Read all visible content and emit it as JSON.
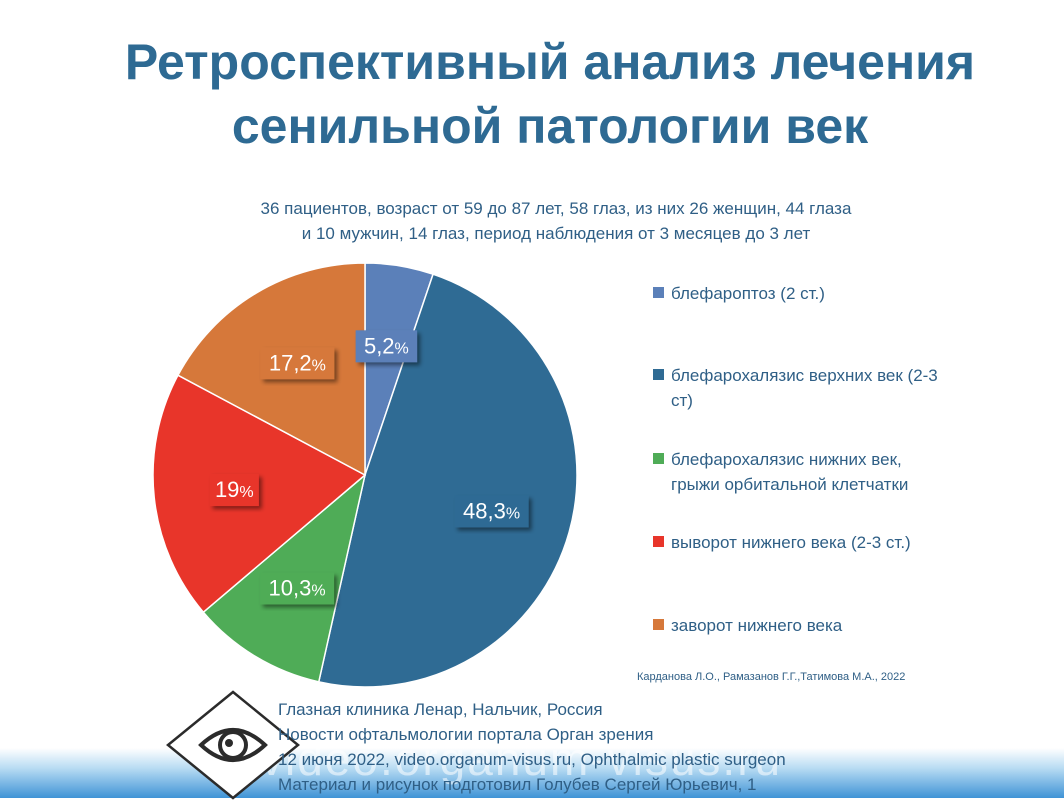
{
  "slide": {
    "title_line1": "Ретроспективный анализ лечения",
    "title_line2": "сенильной патологии век",
    "subtitle_line1": "36 пациентов, возраст от 59 до 87 лет, 58 глаз, из них 26 женщин, 44 глаза",
    "subtitle_line2": "и 10 мужчин, 14 глаз, период наблюдения от 3 месяцев до 3 лет",
    "credit": "Карданова Л.О., Рамазанов Г.Г.,Татимова  М.А., 2022"
  },
  "chart_data": {
    "type": "pie",
    "legend_position": "right",
    "series": [
      {
        "name": "блефароптоз (2 ст.)",
        "value": 5.2,
        "label": "5,2",
        "color": "#5b80b9"
      },
      {
        "name": "блефарохалязис верхних век (2-3 ст)",
        "value": 48.3,
        "label": "48,3",
        "color": "#2f6b94"
      },
      {
        "name": "блефарохалязис нижних век, грыжи орбитальной клетчатки",
        "value": 10.3,
        "label": "10,3",
        "color": "#4fac57"
      },
      {
        "name": "выворот нижнего века (2-3 ст.)",
        "value": 19,
        "label": "19",
        "color": "#e8352a"
      },
      {
        "name": "заворот нижнего века",
        "value": 17.2,
        "label": "17,2",
        "color": "#d6783a"
      }
    ],
    "percent_sign": "%"
  },
  "footer": {
    "line1": "Глазная клиника Ленар, Нальчик, Россия",
    "line2": "Новости офтальмологии портала Орган зрения",
    "line3": "12 июня 2022, video.organum-visus.ru, Ophthalmic plastic surgeon",
    "line4": "Материал и рисунок подготовил Голубев Сергей Юрьевич, 1",
    "watermark": "video.organum-visus.ru"
  }
}
